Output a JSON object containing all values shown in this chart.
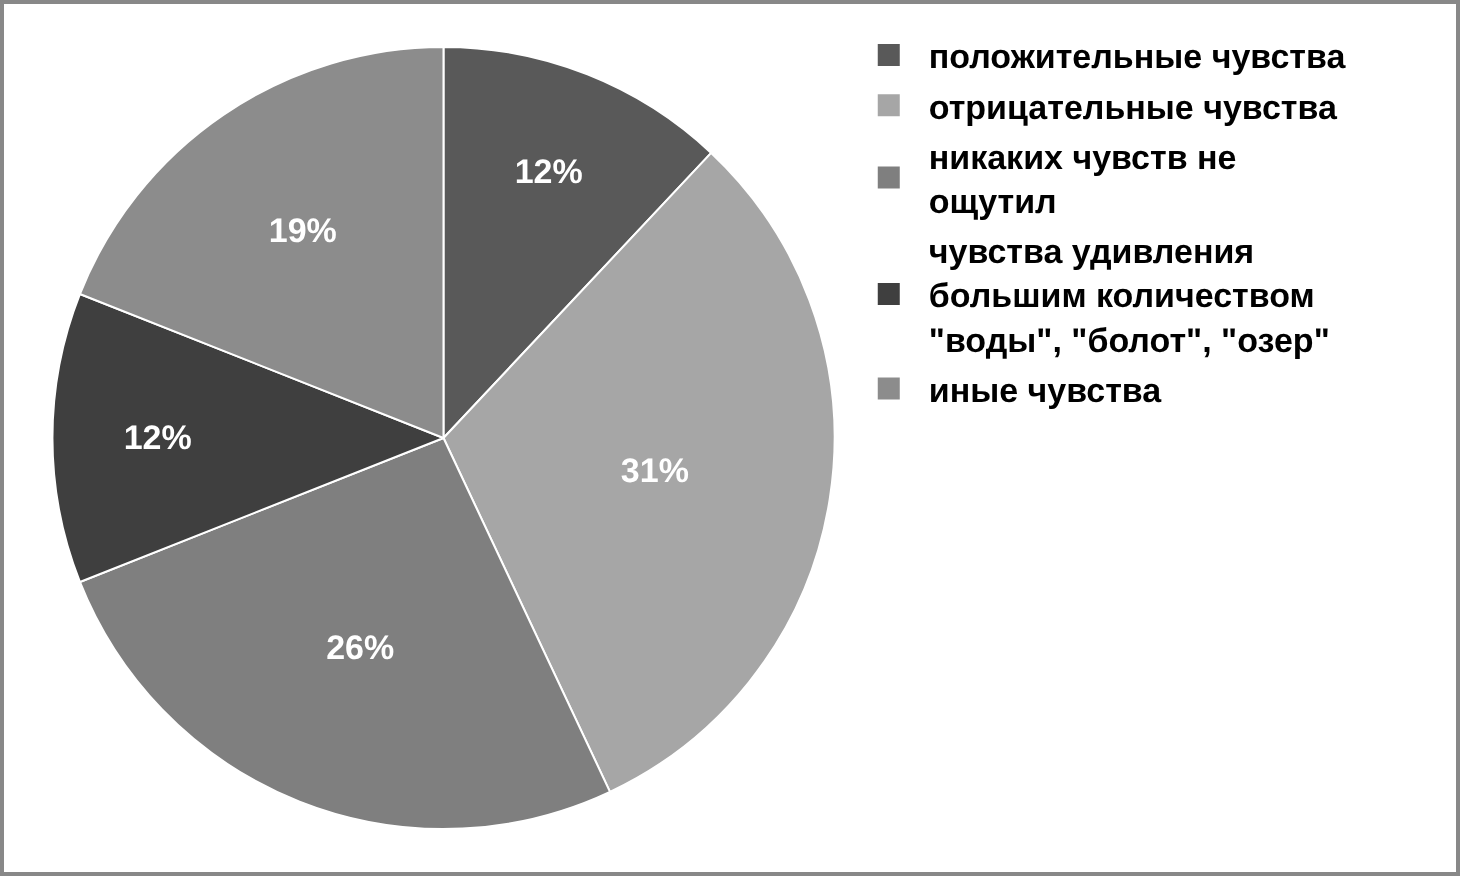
{
  "chart_data": {
    "type": "pie",
    "categories": [
      "положительные чувства",
      "отрицательные чувства",
      "никаких чувств не ощутил",
      "чувства удивления большим количеством \"воды\", \"болот\", \"озер\"",
      "иные чувства"
    ],
    "values": [
      12,
      31,
      26,
      12,
      19
    ],
    "value_labels": [
      "12%",
      "31%",
      "26%",
      "12%",
      "19%"
    ],
    "colors": [
      "#595959",
      "#a6a6a6",
      "#7f7f7f",
      "#3f3f3f",
      "#8c8c8c"
    ],
    "legend": "right"
  }
}
